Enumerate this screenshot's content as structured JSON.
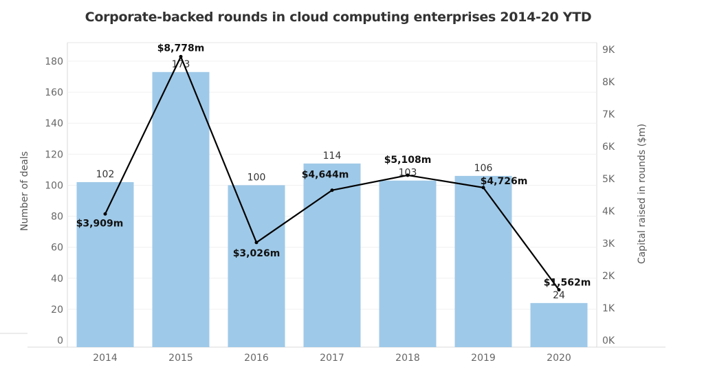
{
  "chart_data": {
    "type": "bar",
    "title": "Corporate-backed rounds in cloud computing enterprises 2014-20 YTD",
    "categories": [
      "2014",
      "2015",
      "2016",
      "2017",
      "2018",
      "2019",
      "2020"
    ],
    "series": [
      {
        "name": "Number of deals",
        "type": "bar",
        "axis": "left",
        "color": "#9fc9e8",
        "values": [
          102,
          173,
          100,
          114,
          103,
          106,
          24
        ],
        "labels": [
          "102",
          "173",
          "100",
          "114",
          "103",
          "106",
          "24"
        ]
      },
      {
        "name": "Capital raised in rounds ($m)",
        "type": "line",
        "axis": "right",
        "color": "#000000",
        "values": [
          3909,
          8778,
          3026,
          4644,
          5108,
          4726,
          1562
        ],
        "labels": [
          "$3,909m",
          "$8,778m",
          "$3,026m",
          "$4,644m",
          "$5,108m",
          "$4,726m",
          "$1,562m"
        ]
      }
    ],
    "ylabel": "Number of deals",
    "y2label": "Capital raised in rounds ($m)",
    "ylim": [
      0,
      190
    ],
    "yticks": [
      0,
      20,
      40,
      60,
      80,
      100,
      120,
      140,
      160,
      180
    ],
    "y2lim": [
      0,
      9500
    ],
    "y2ticks": [
      0,
      1000,
      2000,
      3000,
      4000,
      5000,
      6000,
      7000,
      8000,
      9000
    ],
    "y2ticklabels": [
      "0K",
      "1K",
      "2K",
      "3K",
      "4K",
      "5K",
      "6K",
      "7K",
      "8K",
      "9K"
    ],
    "grid": true,
    "legend": "none"
  }
}
